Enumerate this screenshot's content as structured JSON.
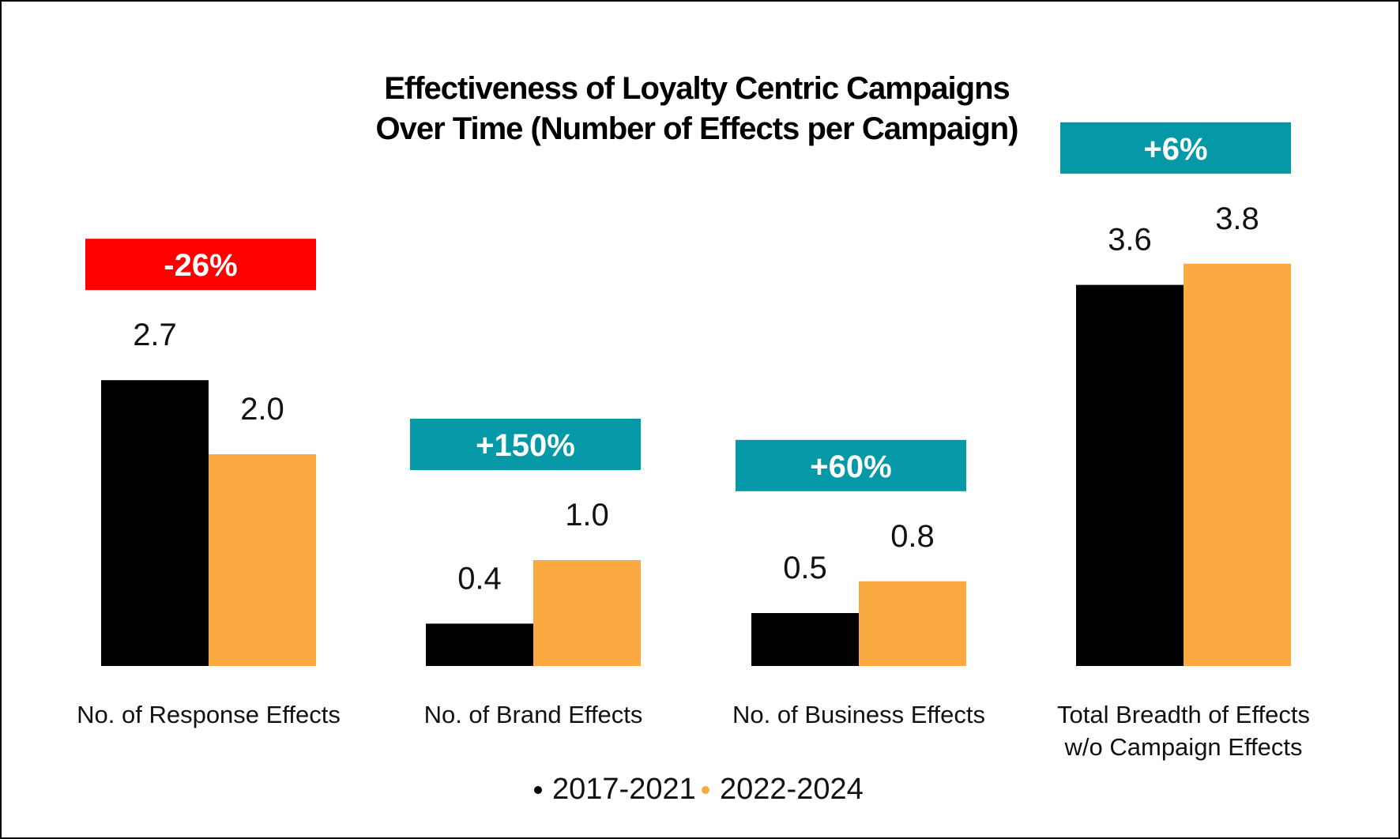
{
  "chart_data": {
    "type": "bar",
    "title": [
      "Effectiveness of Loyalty Centric Campaigns",
      "Over Time (Number of Effects per Campaign)"
    ],
    "xlabel": "",
    "ylabel": "",
    "ylim": [
      0,
      4.0
    ],
    "grid": false,
    "categories": [
      [
        "No. of Response Effects"
      ],
      [
        "No. of Brand Effects"
      ],
      [
        "No. of Business Effects"
      ],
      [
        "Total Breadth of Effects",
        "w/o Campaign Effects"
      ]
    ],
    "series": [
      {
        "name": "2017-2021",
        "color": "#000000",
        "values": [
          2.7,
          0.4,
          0.5,
          3.6
        ],
        "labels": [
          "2.7",
          "0.4",
          "0.5",
          "3.6"
        ]
      },
      {
        "name": "2022-2024",
        "color": "#FBAA42",
        "values": [
          2.0,
          1.0,
          0.8,
          3.8
        ],
        "labels": [
          "2.0",
          "1.0",
          "0.8",
          "3.8"
        ]
      }
    ],
    "annotations": [
      {
        "text": "-26%",
        "color": "#FF0000"
      },
      {
        "text": "+150%",
        "color": "#0598A6"
      },
      {
        "text": "+60%",
        "color": "#0598A6"
      },
      {
        "text": "+6%",
        "color": "#0598A6"
      }
    ],
    "legend": {
      "placement": "bottom",
      "bullet": "•"
    }
  }
}
